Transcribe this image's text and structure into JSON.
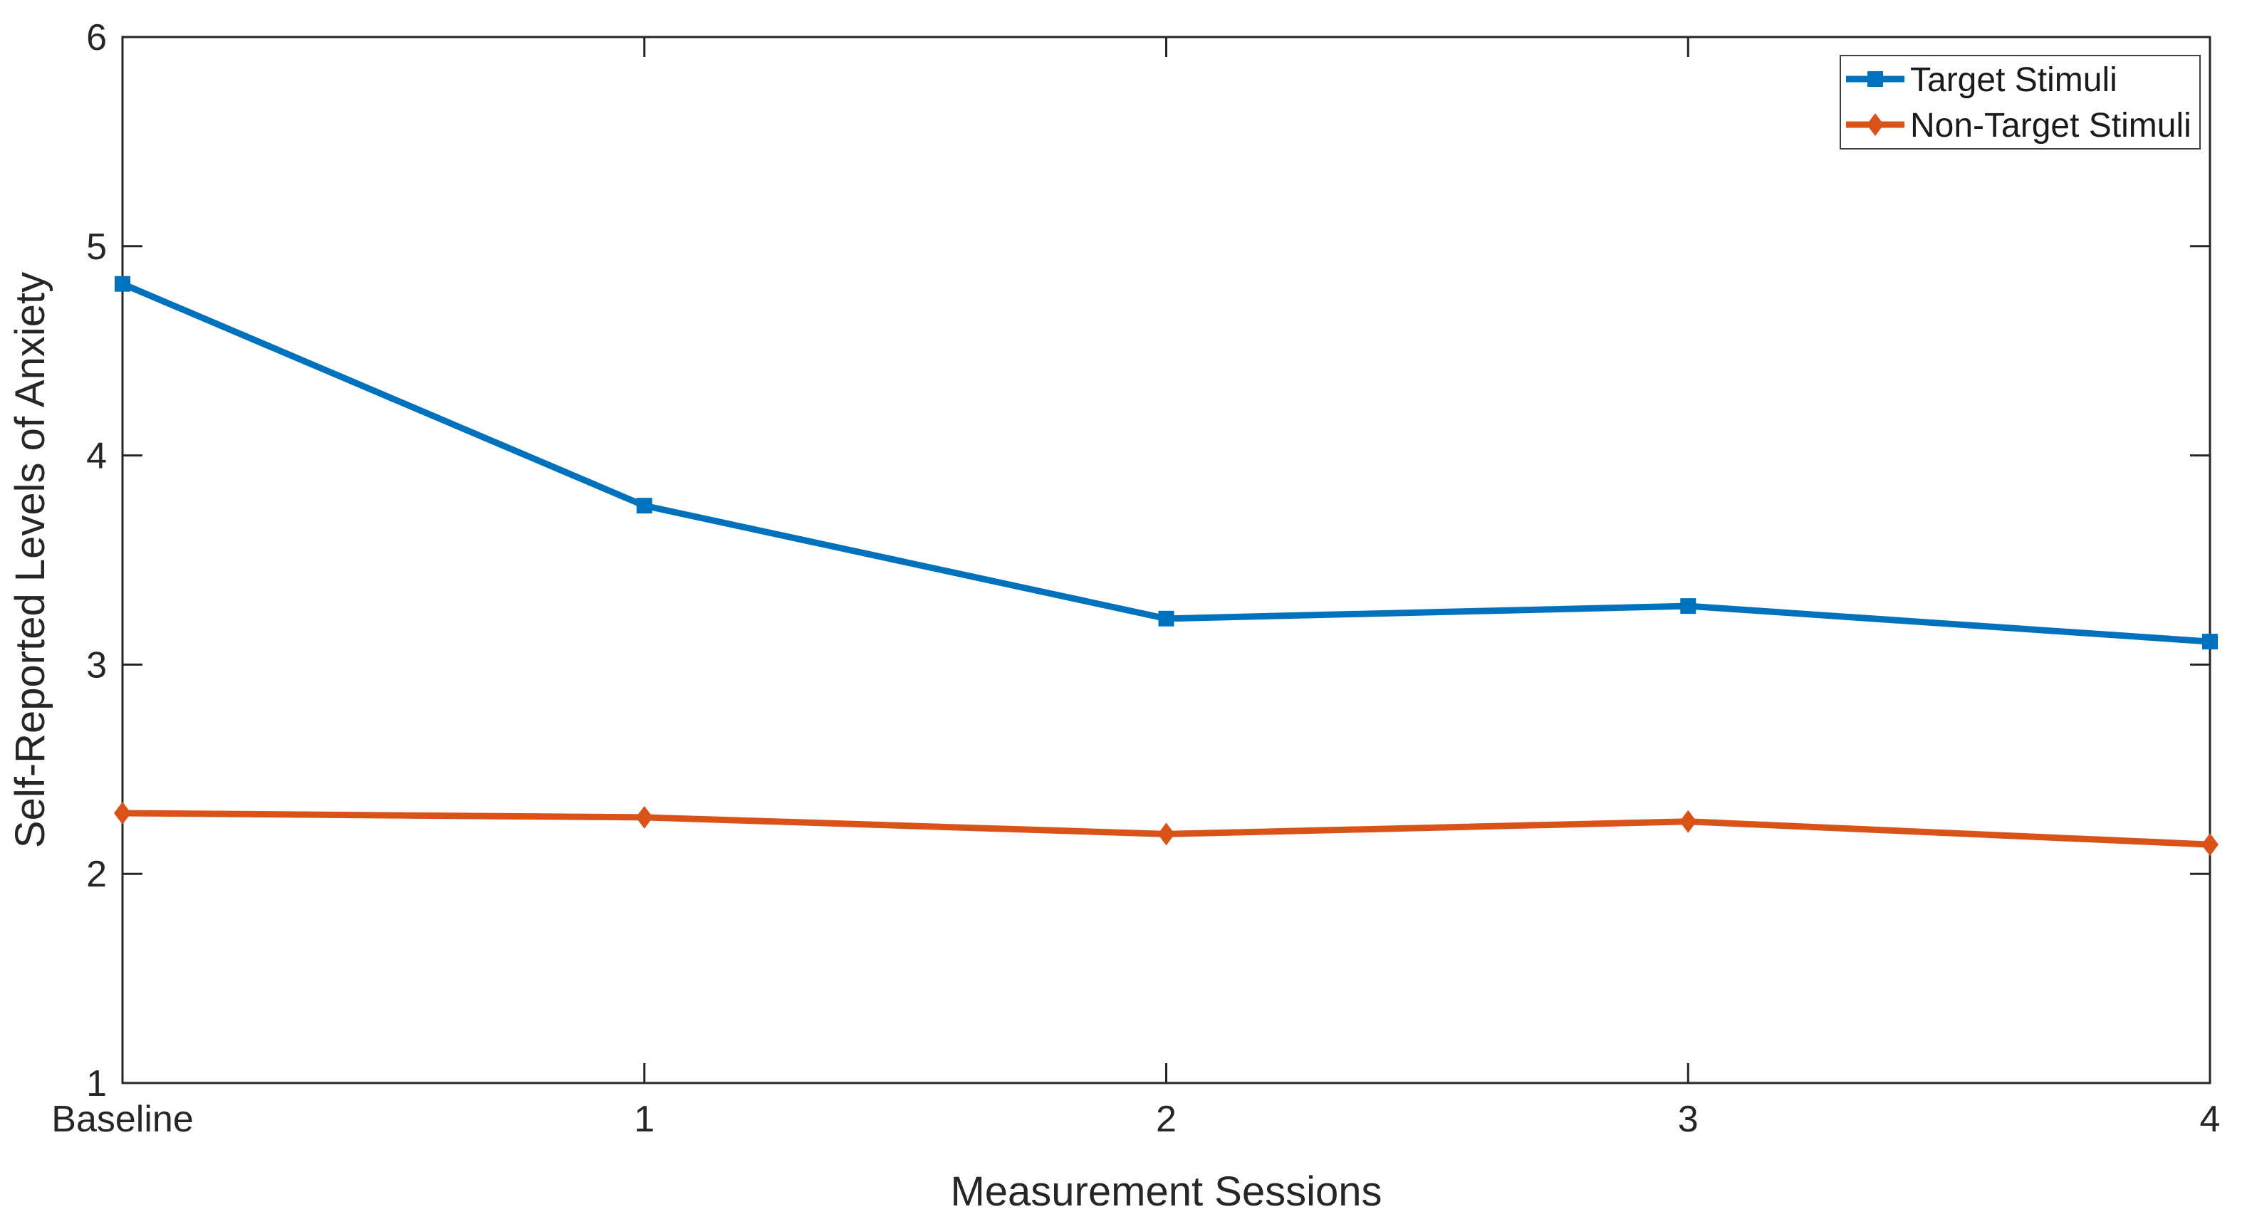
{
  "chart_data": {
    "type": "line",
    "title": "",
    "xlabel": "Measurement Sessions",
    "ylabel": "Self-Reported Levels of Anxiety",
    "categories": [
      "Baseline",
      "1",
      "2",
      "3",
      "4"
    ],
    "x": [
      0,
      1,
      2,
      3,
      4
    ],
    "xlim": [
      0,
      4
    ],
    "ylim": [
      1,
      6
    ],
    "yticks": [
      1,
      2,
      3,
      4,
      5,
      6
    ],
    "grid": false,
    "legend": {
      "position": "top-right",
      "entries": [
        "Target Stimuli",
        "Non-Target Stimuli"
      ]
    },
    "series": [
      {
        "name": "Target Stimuli",
        "color": "#0072BD",
        "marker": "square",
        "values": [
          4.82,
          3.76,
          3.22,
          3.28,
          3.11
        ]
      },
      {
        "name": "Non-Target Stimuli",
        "color": "#D95319",
        "marker": "diamond",
        "values": [
          2.29,
          2.27,
          2.19,
          2.25,
          2.14
        ]
      }
    ]
  },
  "style": {
    "background": "#ffffff",
    "axis_color": "#262626",
    "text_color": "#262626",
    "legend_text_color": "#1a1a1a",
    "legend_border_color": "#404040"
  }
}
